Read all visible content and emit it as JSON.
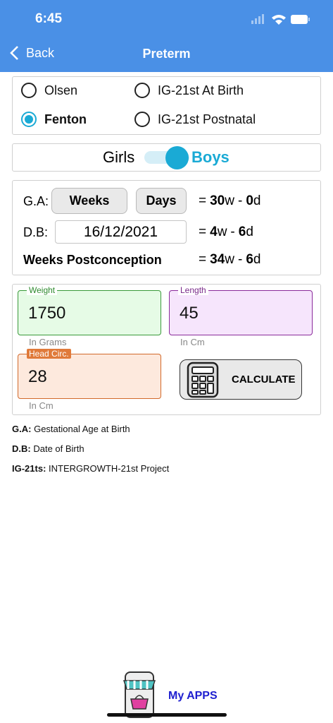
{
  "status_bar": {
    "time": "6:45"
  },
  "nav": {
    "back": "Back",
    "title": "Preterm"
  },
  "chart_options": [
    "Olsen",
    "IG-21st At Birth",
    "Fenton",
    "IG-21st Postnatal"
  ],
  "sex_switch": {
    "left": "Girls",
    "right": "Boys"
  },
  "ga_row": {
    "label": "G.A:",
    "weeks_button": "Weeks",
    "days_button": "Days",
    "result": [
      "=",
      "30",
      "w",
      "-",
      "0",
      "d"
    ]
  },
  "db_row": {
    "label": "D.B:",
    "date": "16/12/2021",
    "result": [
      "=",
      "4",
      "w",
      "-",
      "6",
      "d"
    ]
  },
  "pc_row": {
    "label": "Weeks Postconception",
    "result": [
      "=",
      "34",
      "w",
      "-",
      "6",
      "d"
    ]
  },
  "fields": [
    {
      "label": "Weight",
      "value": "1750",
      "unit": "In Grams"
    },
    {
      "label": "Length",
      "value": "45",
      "unit": "In Cm"
    },
    {
      "label": "Head Circ.",
      "value": "28",
      "unit": "In Cm"
    }
  ],
  "calculate_button": "CALCULATE",
  "notes": [
    {
      "term": "G.A:",
      "definition": "Gestational Age at Birth"
    },
    {
      "term": "D.B:",
      "definition": "Date of Birth"
    },
    {
      "term": "IG-21ts:",
      "definition": "INTERGROWTH-21st Project"
    }
  ],
  "footer": {
    "apps": "My APPS"
  }
}
